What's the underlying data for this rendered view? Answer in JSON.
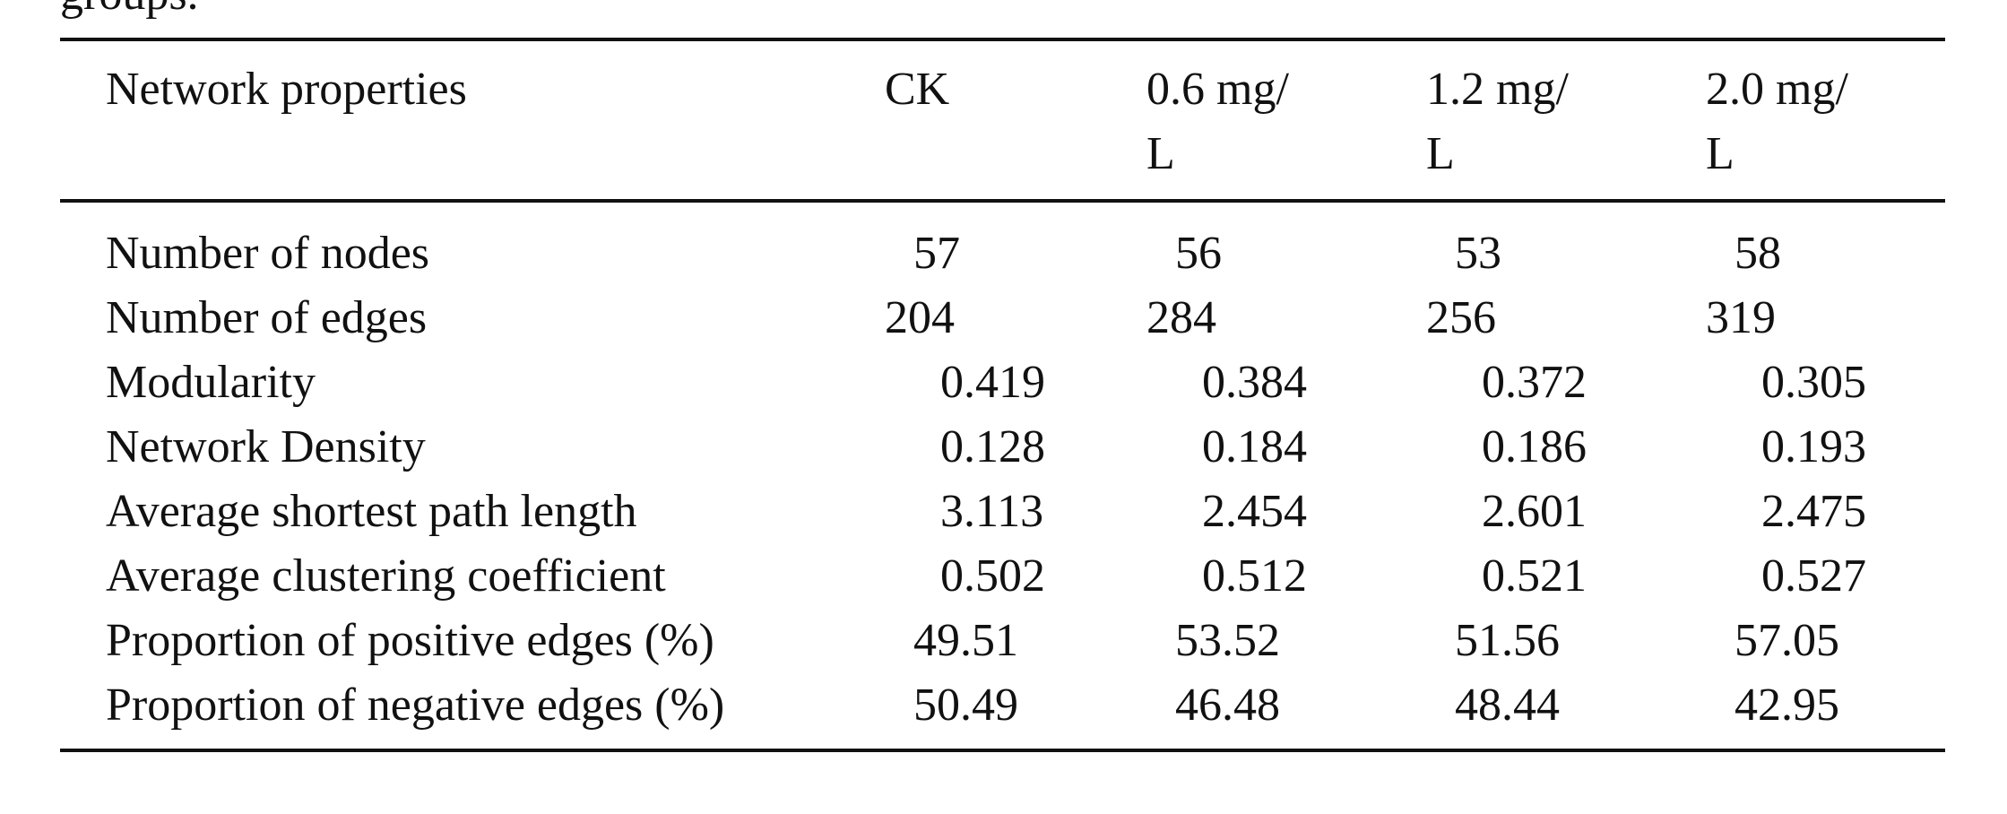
{
  "caption_fragment": "groups.",
  "table": {
    "header": [
      "Network properties",
      "CK",
      "0.6 mg/L",
      "1.2 mg/L",
      "2.0 mg/L"
    ],
    "rows": [
      [
        "Number of nodes",
        "57",
        "56",
        "53",
        "58"
      ],
      [
        "Number of edges",
        "204",
        "284",
        "256",
        "319"
      ],
      [
        "Modularity",
        "0.419",
        "0.384",
        "0.372",
        "0.305"
      ],
      [
        "Network Density",
        "0.128",
        "0.184",
        "0.186",
        "0.193"
      ],
      [
        "Average shortest path length",
        "3.113",
        "2.454",
        "2.601",
        "2.475"
      ],
      [
        "Average clustering coefficient",
        "0.502",
        "0.512",
        "0.521",
        "0.527"
      ],
      [
        "Proportion of positive edges (%)",
        "49.51",
        "53.52",
        "51.56",
        "57.05"
      ],
      [
        "Proportion of negative edges (%)",
        "50.49",
        "46.48",
        "48.44",
        "42.95"
      ]
    ]
  }
}
